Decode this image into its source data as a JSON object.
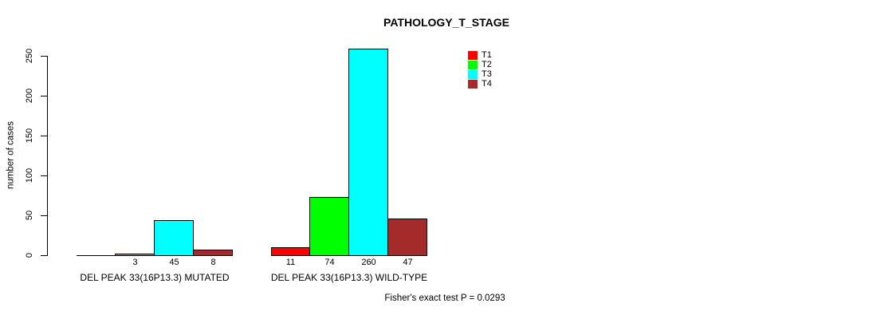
{
  "chart_data": {
    "type": "bar",
    "title": "PATHOLOGY_T_STAGE",
    "ylabel": "number of cases",
    "xlabel": "",
    "ylim": [
      0,
      250
    ],
    "yticks": [
      0,
      50,
      100,
      150,
      200,
      250
    ],
    "grid": false,
    "legend_position": "top-right-inside",
    "categories": [
      "DEL PEAK 33(16P13.3) MUTATED",
      "DEL PEAK 33(16P13.3) WILD-TYPE"
    ],
    "series": [
      {
        "name": "T1",
        "color": "#ff0000",
        "values": [
          0,
          11
        ]
      },
      {
        "name": "T2",
        "color": "#00ff00",
        "values": [
          3,
          74
        ]
      },
      {
        "name": "T3",
        "color": "#00ffff",
        "values": [
          45,
          260
        ]
      },
      {
        "name": "T4",
        "color": "#a52a2a",
        "values": [
          8,
          47
        ]
      }
    ],
    "bar_value_labels": [
      [
        null,
        3,
        45,
        8
      ],
      [
        11,
        74,
        260,
        47
      ]
    ],
    "annotation": "Fisher's exact test P = 0.0293"
  }
}
